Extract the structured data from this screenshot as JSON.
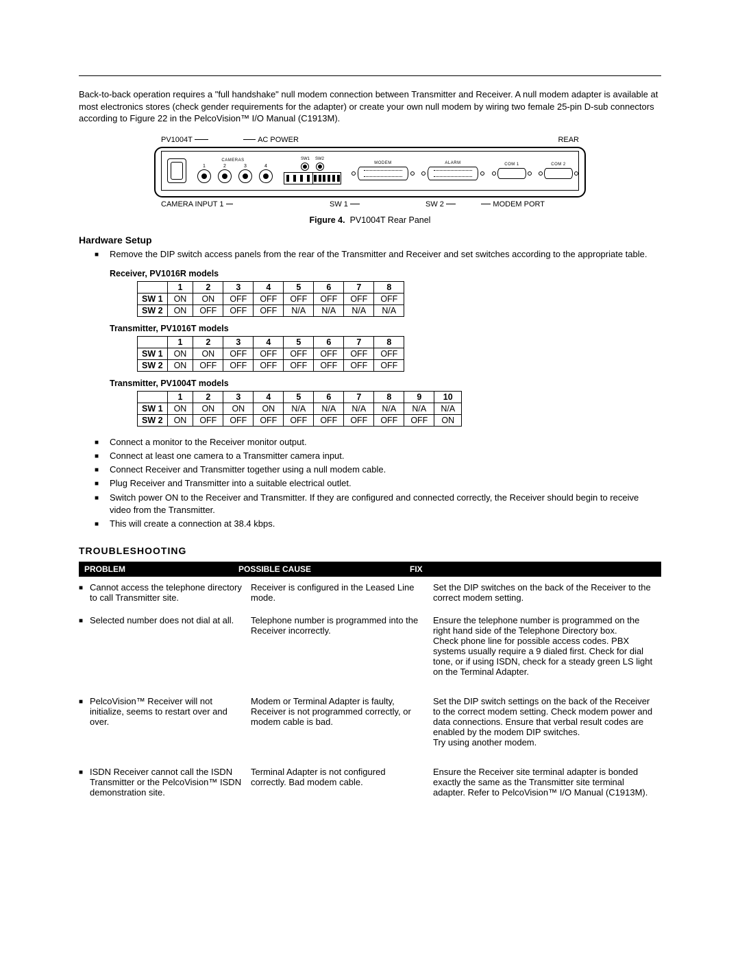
{
  "intro": "Back-to-back operation requires a \"full handshake\" null modem connection between Transmitter and Receiver. A null modem adapter is available at most electronics stores (check gender requirements for the adapter) or create your own null modem by wiring two female 25-pin D-sub connectors according to Figure 22 in the PelcoVision™ I/O Manual (C1913M).",
  "figure": {
    "top_left": "PV1004T",
    "top_mid": "AC POWER",
    "top_right": "REAR",
    "cameras_label": "CAMERAS",
    "sw1_label": "SW1",
    "sw2_label": "SW2",
    "modem_label": "MODEM",
    "alarm_label": "ALARM",
    "com1_label": "COM 1",
    "com2_label": "COM 2",
    "cam_nums": [
      "1",
      "2",
      "3",
      "4"
    ],
    "bottom_a": "CAMERA INPUT 1",
    "bottom_b": "SW 1",
    "bottom_c": "SW 2",
    "bottom_d": "MODEM PORT",
    "caption_label": "Figure 4.",
    "caption_text": "PV1004T Rear Panel"
  },
  "hardware_setup_heading": "Hardware Setup",
  "hw_bullet1": "Remove the DIP switch access panels from the rear of the Transmitter and Receiver and set switches according to the appropriate table.",
  "tables": {
    "receiver_title": "Receiver, PV1016R models",
    "cols8": [
      "1",
      "2",
      "3",
      "4",
      "5",
      "6",
      "7",
      "8"
    ],
    "receiver_rows": [
      {
        "h": "SW 1",
        "v": [
          "ON",
          "ON",
          "OFF",
          "OFF",
          "OFF",
          "OFF",
          "OFF",
          "OFF"
        ]
      },
      {
        "h": "SW 2",
        "v": [
          "ON",
          "OFF",
          "OFF",
          "OFF",
          "N/A",
          "N/A",
          "N/A",
          "N/A"
        ]
      }
    ],
    "tx16_title": "Transmitter, PV1016T models",
    "tx16_rows": [
      {
        "h": "SW 1",
        "v": [
          "ON",
          "ON",
          "OFF",
          "OFF",
          "OFF",
          "OFF",
          "OFF",
          "OFF"
        ]
      },
      {
        "h": "SW 2",
        "v": [
          "ON",
          "OFF",
          "OFF",
          "OFF",
          "OFF",
          "OFF",
          "OFF",
          "OFF"
        ]
      }
    ],
    "tx04_title": "Transmitter, PV1004T models",
    "cols10": [
      "1",
      "2",
      "3",
      "4",
      "5",
      "6",
      "7",
      "8",
      "9",
      "10"
    ],
    "tx04_rows": [
      {
        "h": "SW 1",
        "v": [
          "ON",
          "ON",
          "ON",
          "ON",
          "N/A",
          "N/A",
          "N/A",
          "N/A",
          "N/A",
          "N/A"
        ]
      },
      {
        "h": "SW 2",
        "v": [
          "ON",
          "OFF",
          "OFF",
          "OFF",
          "OFF",
          "OFF",
          "OFF",
          "OFF",
          "OFF",
          "ON"
        ]
      }
    ]
  },
  "hw_bullets_rest": [
    "Connect a monitor to the Receiver monitor output.",
    "Connect at least one camera to a Transmitter camera input.",
    "Connect Receiver and Transmitter together using a null modem cable.",
    "Plug Receiver and Transmitter into a suitable electrical outlet.",
    "Switch power ON to the Receiver and Transmitter. If they are configured and connected correctly, the Receiver should begin to receive video from the Transmitter.",
    "This will create a connection at 38.4 kbps."
  ],
  "troubleshooting_heading": "TROUBLESHOOTING",
  "trouble_headers": {
    "problem": "PROBLEM",
    "cause": "POSSIBLE CAUSE",
    "fix": "FIX"
  },
  "trouble_rows": [
    {
      "problem": "Cannot access the telephone directory to call Transmitter site.",
      "cause": "Receiver is configured in the Leased Line mode.",
      "fix": "Set the DIP switches on the back of the Receiver to the correct modem setting."
    },
    {
      "problem": "Selected number does not dial at all.",
      "cause": "Telephone number is programmed into the Receiver incorrectly.",
      "fix": "Ensure the telephone number is programmed on the right hand side of the Telephone Directory box.\nCheck phone line for possible access codes. PBX systems usually require a 9 dialed first. Check for dial tone, or if using ISDN, check for a steady green LS light on the Terminal Adapter."
    },
    {
      "problem": "PelcoVision™ Receiver will not initialize, seems to restart over and over.",
      "cause": "Modem or Terminal Adapter is faulty, Receiver is not programmed correctly, or modem cable is bad.",
      "fix": "Set the DIP switch settings on the back of the Receiver to the correct modem setting. Check modem power and data connections. Ensure that verbal result codes are enabled by the modem DIP switches.\nTry using another modem."
    },
    {
      "problem": "ISDN Receiver cannot call the ISDN Transmitter or the PelcoVision™ ISDN demonstration site.",
      "cause": "Terminal Adapter is not configured correctly. Bad modem cable.",
      "fix": "Ensure the Receiver site terminal adapter is bonded exactly the same as the Transmitter site terminal adapter.  Refer to PelcoVision™ I/O Manual (C1913M)."
    }
  ]
}
